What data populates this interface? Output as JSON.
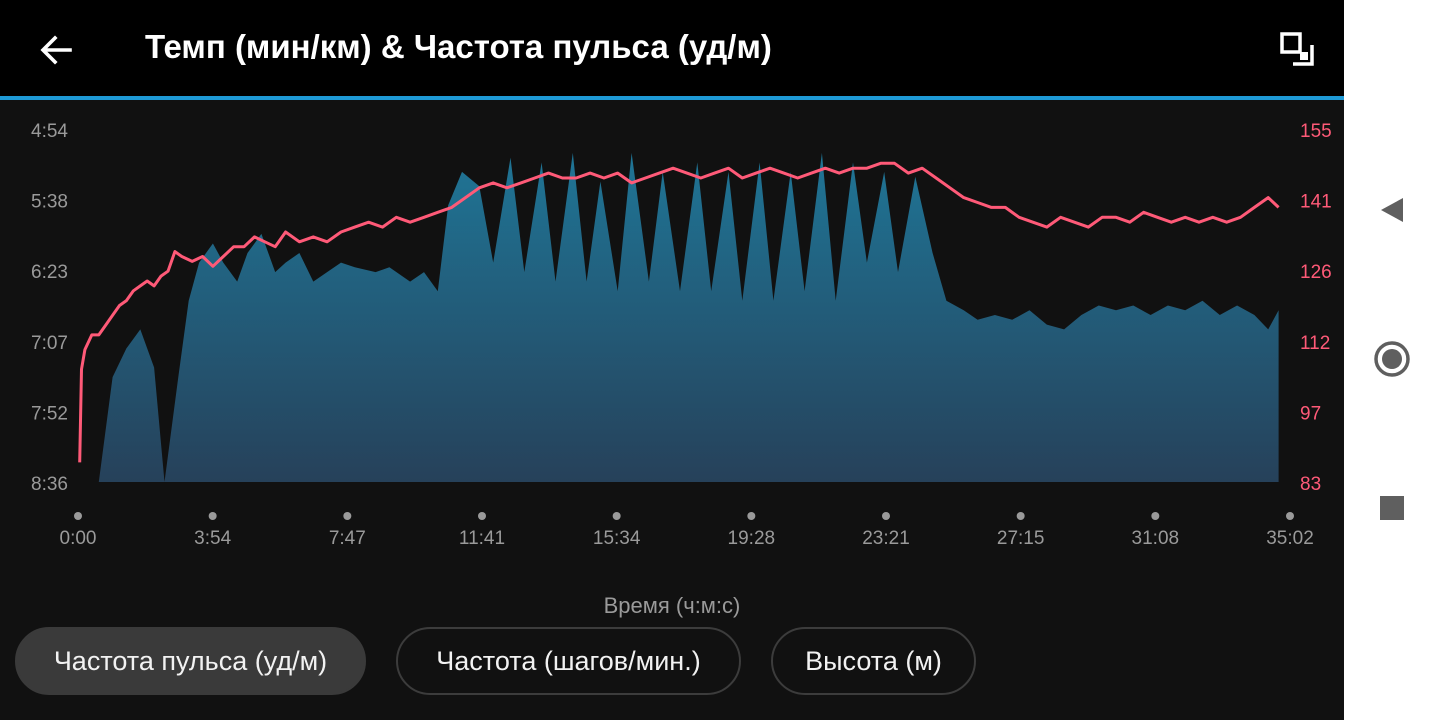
{
  "header": {
    "title": "Темп (мин/км) & Частота пульса (уд/м)",
    "back_icon": "back-arrow-icon",
    "expand_icon": "expand-icon"
  },
  "colors": {
    "accent": "#1e9ad6",
    "heart_rate": "#ff5a78",
    "pace_fill_top": "#1f7596",
    "pace_fill_bottom": "#26415a"
  },
  "chart_data": {
    "type": "area",
    "xlabel": "Время (ч:м:с)",
    "x_ticks": [
      "0:00",
      "3:54",
      "7:47",
      "11:41",
      "15:34",
      "19:28",
      "23:21",
      "27:15",
      "31:08",
      "35:02"
    ],
    "x_range_min": [
      0,
      35.03
    ],
    "y_left_ticks": [
      "4:54",
      "5:38",
      "6:23",
      "7:07",
      "7:52",
      "8:36"
    ],
    "y_left_range_min_per_km": [
      4.9,
      8.6
    ],
    "y_left_label": "Темп (мин/км)",
    "y_right_ticks": [
      "155",
      "141",
      "126",
      "112",
      "97",
      "83"
    ],
    "y_right_range": [
      83,
      155
    ],
    "y_right_label": "Частота пульса (уд/м)",
    "series": [
      {
        "name": "Темп (мин/км)",
        "axis": "left",
        "style": "area",
        "x": [
          0.6,
          1.0,
          1.4,
          1.8,
          2.2,
          2.5,
          2.9,
          3.2,
          3.5,
          3.9,
          4.2,
          4.6,
          4.9,
          5.3,
          5.7,
          6.0,
          6.4,
          6.8,
          7.2,
          7.6,
          8.0,
          8.6,
          9.0,
          9.6,
          10.0,
          10.4,
          10.7,
          11.1,
          11.6,
          12.0,
          12.5,
          12.9,
          13.4,
          13.8,
          14.3,
          14.7,
          15.1,
          15.6,
          16.0,
          16.5,
          16.9,
          17.4,
          17.9,
          18.3,
          18.8,
          19.2,
          19.7,
          20.1,
          20.6,
          21.0,
          21.5,
          21.9,
          22.4,
          22.8,
          23.3,
          23.7,
          24.2,
          24.7,
          25.1,
          25.6,
          26.0,
          26.5,
          27.0,
          27.5,
          28.0,
          28.5,
          29.0,
          29.5,
          30.0,
          30.5,
          31.0,
          31.5,
          32.0,
          32.5,
          33.0,
          33.5,
          34.0,
          34.4,
          34.7
        ],
        "values": [
          8.6,
          7.5,
          7.2,
          7.0,
          7.4,
          8.6,
          7.5,
          6.7,
          6.3,
          6.1,
          6.3,
          6.5,
          6.2,
          6.0,
          6.4,
          6.3,
          6.2,
          6.5,
          6.4,
          6.3,
          6.35,
          6.4,
          6.35,
          6.5,
          6.4,
          6.6,
          5.7,
          5.35,
          5.5,
          6.3,
          5.2,
          6.4,
          5.25,
          6.5,
          5.15,
          6.5,
          5.45,
          6.6,
          5.15,
          6.5,
          5.35,
          6.6,
          5.25,
          6.6,
          5.35,
          6.7,
          5.25,
          6.7,
          5.35,
          6.6,
          5.15,
          6.7,
          5.25,
          6.3,
          5.35,
          6.4,
          5.4,
          6.2,
          6.7,
          6.8,
          6.9,
          6.85,
          6.9,
          6.8,
          6.95,
          7.0,
          6.85,
          6.75,
          6.8,
          6.75,
          6.85,
          6.75,
          6.8,
          6.7,
          6.85,
          6.75,
          6.85,
          7.0,
          6.8
        ]
      },
      {
        "name": "Частота пульса (уд/м)",
        "axis": "right",
        "style": "line",
        "x": [
          0.05,
          0.1,
          0.2,
          0.4,
          0.6,
          0.8,
          1.0,
          1.2,
          1.4,
          1.6,
          1.8,
          2.0,
          2.2,
          2.4,
          2.6,
          2.8,
          3.0,
          3.3,
          3.6,
          3.9,
          4.2,
          4.5,
          4.8,
          5.1,
          5.4,
          5.7,
          6.0,
          6.4,
          6.8,
          7.2,
          7.6,
          8.0,
          8.4,
          8.8,
          9.2,
          9.6,
          10.0,
          10.4,
          10.8,
          11.2,
          11.6,
          12.0,
          12.4,
          12.8,
          13.2,
          13.6,
          14.0,
          14.4,
          14.8,
          15.2,
          15.6,
          16.0,
          16.4,
          16.8,
          17.2,
          17.6,
          18.0,
          18.4,
          18.8,
          19.2,
          19.6,
          20.0,
          20.4,
          20.8,
          21.2,
          21.6,
          22.0,
          22.4,
          22.8,
          23.2,
          23.6,
          24.0,
          24.4,
          24.8,
          25.2,
          25.6,
          26.0,
          26.4,
          26.8,
          27.2,
          27.6,
          28.0,
          28.4,
          28.8,
          29.2,
          29.6,
          30.0,
          30.4,
          30.8,
          31.2,
          31.6,
          32.0,
          32.4,
          32.8,
          33.2,
          33.6,
          34.0,
          34.4,
          34.7
        ],
        "values": [
          87,
          106,
          110,
          113,
          113,
          115,
          117,
          119,
          120,
          122,
          123,
          124,
          123,
          125,
          126,
          130,
          129,
          128,
          129,
          127,
          129,
          131,
          131,
          133,
          132,
          131,
          134,
          132,
          133,
          132,
          134,
          135,
          136,
          135,
          137,
          136,
          137,
          138,
          139,
          141,
          143,
          144,
          143,
          144,
          145,
          146,
          145,
          145,
          146,
          145,
          146,
          144,
          145,
          146,
          147,
          146,
          145,
          146,
          147,
          145,
          146,
          147,
          146,
          145,
          146,
          147,
          146,
          147,
          147,
          148,
          148,
          146,
          147,
          145,
          143,
          141,
          140,
          139,
          139,
          137,
          136,
          135,
          137,
          136,
          135,
          137,
          137,
          136,
          138,
          137,
          136,
          137,
          136,
          137,
          136,
          137,
          139,
          141,
          139
        ]
      }
    ],
    "grid": false,
    "legend": "none"
  },
  "chips": [
    {
      "label": "Частота пульса (уд/м)",
      "active": true
    },
    {
      "label": "Частота (шагов/мин.)",
      "active": false
    },
    {
      "label": "Высота (м)",
      "active": false
    }
  ],
  "navbar": {
    "back_icon": "nav-back-triangle-icon",
    "home_icon": "nav-home-circle-icon",
    "recents_icon": "nav-recents-square-icon"
  }
}
